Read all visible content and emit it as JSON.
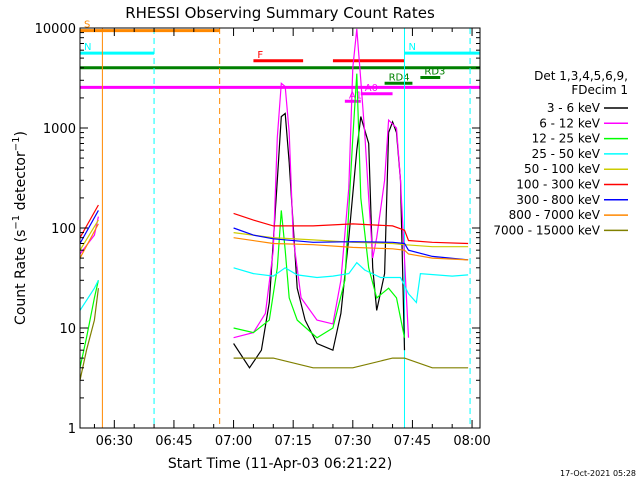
{
  "chart_data": {
    "type": "line",
    "title": "RHESSI Observing Summary Count Rates",
    "xlabel": "Start Time (11-Apr-03 06:21:22)",
    "ylabel": "Count Rate (s⁻¹ detector⁻¹)",
    "ylabel_parts": {
      "main": "Count Rate (s",
      "sup1": "−1",
      "mid": " detector",
      "sup2": "−1",
      "end": ")"
    },
    "yscale": "log",
    "xlim": [
      "06:21:22",
      "08:02:00"
    ],
    "ylim": [
      1,
      10000
    ],
    "x_ticks": [
      "06:30",
      "06:45",
      "07:00",
      "07:15",
      "07:30",
      "07:45",
      "08:00"
    ],
    "y_ticks": [
      "1",
      "10",
      "100",
      "1000",
      "10000"
    ],
    "legend_header": [
      "Det 1,3,4,5,6,9,",
      "FDecim 1"
    ],
    "footer": "17-Oct-2021 05:28",
    "series": [
      {
        "name": "3 - 6 keV",
        "color": "#000000",
        "points": [
          [
            "07:00",
            7
          ],
          [
            "07:04",
            4
          ],
          [
            "07:07",
            6
          ],
          [
            "07:09",
            18
          ],
          [
            "07:11",
            300
          ],
          [
            "07:12",
            1300
          ],
          [
            "07:13",
            1400
          ],
          [
            "07:14",
            450
          ],
          [
            "07:16",
            25
          ],
          [
            "07:18",
            12
          ],
          [
            "07:21",
            7
          ],
          [
            "07:25",
            6
          ],
          [
            "07:27",
            14
          ],
          [
            "07:29",
            80
          ],
          [
            "07:31",
            600
          ],
          [
            "07:32",
            1300
          ],
          [
            "07:34",
            700
          ],
          [
            "07:35",
            40
          ],
          [
            "07:36",
            15
          ],
          [
            "07:38",
            35
          ],
          [
            "07:39",
            900
          ],
          [
            "07:40",
            1150
          ],
          [
            "07:41",
            900
          ],
          [
            "07:42",
            300
          ],
          [
            "07:43",
            6
          ]
        ]
      },
      {
        "name": "6 - 12 keV",
        "color": "#ff00ff",
        "points": [
          [
            "06:21:22",
            55
          ],
          [
            "06:25",
            85
          ],
          [
            "06:26",
            130
          ],
          [
            "07:00",
            8
          ],
          [
            "07:05",
            9
          ],
          [
            "07:08",
            14
          ],
          [
            "07:10",
            60
          ],
          [
            "07:11",
            800
          ],
          [
            "07:12",
            2800
          ],
          [
            "07:13",
            2600
          ],
          [
            "07:14",
            900
          ],
          [
            "07:15",
            80
          ],
          [
            "07:17",
            20
          ],
          [
            "07:21",
            12
          ],
          [
            "07:25",
            11
          ],
          [
            "07:27",
            30
          ],
          [
            "07:29",
            250
          ],
          [
            "07:30",
            4000
          ],
          [
            "07:31",
            9800
          ],
          [
            "07:32",
            3000
          ],
          [
            "07:33",
            900
          ],
          [
            "07:34",
            200
          ],
          [
            "07:35",
            50
          ],
          [
            "07:36",
            80
          ],
          [
            "07:38",
            300
          ],
          [
            "07:39",
            1200
          ],
          [
            "07:41",
            1000
          ],
          [
            "07:42",
            300
          ],
          [
            "07:44",
            8
          ]
        ]
      },
      {
        "name": "12 - 25 keV",
        "color": "#00ff00",
        "points": [
          [
            "06:21:22",
            4
          ],
          [
            "06:23",
            8
          ],
          [
            "06:25",
            20
          ],
          [
            "06:26",
            30
          ],
          [
            "07:00",
            10
          ],
          [
            "07:05",
            9
          ],
          [
            "07:09",
            12
          ],
          [
            "07:11",
            40
          ],
          [
            "07:12",
            150
          ],
          [
            "07:13",
            60
          ],
          [
            "07:14",
            20
          ],
          [
            "07:16",
            12
          ],
          [
            "07:21",
            8
          ],
          [
            "07:25",
            10
          ],
          [
            "07:28",
            30
          ],
          [
            "07:30",
            800
          ],
          [
            "07:31",
            3500
          ],
          [
            "07:32",
            200
          ],
          [
            "07:34",
            40
          ],
          [
            "07:36",
            20
          ],
          [
            "07:39",
            25
          ],
          [
            "07:41",
            20
          ],
          [
            "07:43",
            8
          ]
        ]
      },
      {
        "name": "25 - 50 keV",
        "color": "#00ffff",
        "points": [
          [
            "06:21:22",
            15
          ],
          [
            "06:25",
            25
          ],
          [
            "06:26",
            30
          ],
          [
            "07:00",
            40
          ],
          [
            "07:05",
            35
          ],
          [
            "07:10",
            33
          ],
          [
            "07:13",
            40
          ],
          [
            "07:16",
            34
          ],
          [
            "07:21",
            32
          ],
          [
            "07:25",
            33
          ],
          [
            "07:29",
            35
          ],
          [
            "07:31",
            45
          ],
          [
            "07:33",
            38
          ],
          [
            "07:37",
            32
          ],
          [
            "07:42",
            32
          ],
          [
            "07:44",
            22
          ],
          [
            "07:46",
            18
          ],
          [
            "07:47",
            35
          ],
          [
            "07:55",
            33
          ],
          [
            "07:59",
            34
          ]
        ]
      },
      {
        "name": "50 - 100 keV",
        "color": "#cccc00",
        "points": [
          [
            "06:21:22",
            60
          ],
          [
            "06:26",
            120
          ],
          [
            "07:00",
            90
          ],
          [
            "07:10",
            80
          ],
          [
            "07:20",
            76
          ],
          [
            "07:30",
            72
          ],
          [
            "07:40",
            70
          ],
          [
            "07:43",
            68
          ],
          [
            "07:50",
            65
          ],
          [
            "07:59",
            65
          ]
        ]
      },
      {
        "name": "100 - 300 keV",
        "color": "#ff0000",
        "points": [
          [
            "06:21:22",
            80
          ],
          [
            "06:26",
            170
          ],
          [
            "07:00",
            140
          ],
          [
            "07:05",
            120
          ],
          [
            "07:10",
            105
          ],
          [
            "07:20",
            105
          ],
          [
            "07:30",
            110
          ],
          [
            "07:40",
            105
          ],
          [
            "07:43",
            95
          ],
          [
            "07:44",
            75
          ],
          [
            "07:50",
            72
          ],
          [
            "07:59",
            70
          ]
        ]
      },
      {
        "name": "300 - 800 keV",
        "color": "#0000ff",
        "points": [
          [
            "06:21:22",
            70
          ],
          [
            "06:26",
            150
          ],
          [
            "07:00",
            100
          ],
          [
            "07:05",
            85
          ],
          [
            "07:10",
            78
          ],
          [
            "07:20",
            72
          ],
          [
            "07:30",
            73
          ],
          [
            "07:40",
            72
          ],
          [
            "07:43",
            70
          ],
          [
            "07:44",
            60
          ],
          [
            "07:50",
            52
          ],
          [
            "07:59",
            48
          ]
        ]
      },
      {
        "name": "800 - 7000 keV",
        "color": "#ff8800",
        "points": [
          [
            "06:21:22",
            50
          ],
          [
            "06:26",
            110
          ],
          [
            "07:00",
            80
          ],
          [
            "07:10",
            70
          ],
          [
            "07:20",
            68
          ],
          [
            "07:30",
            64
          ],
          [
            "07:40",
            62
          ],
          [
            "07:43",
            60
          ],
          [
            "07:44",
            55
          ],
          [
            "07:50",
            50
          ],
          [
            "07:59",
            48
          ]
        ]
      },
      {
        "name": "7000 - 15000 keV",
        "color": "#808000",
        "points": [
          [
            "06:21:22",
            3
          ],
          [
            "06:23",
            6
          ],
          [
            "06:25",
            12
          ],
          [
            "06:26",
            25
          ],
          [
            "07:00",
            5
          ],
          [
            "07:10",
            5
          ],
          [
            "07:20",
            4
          ],
          [
            "07:30",
            4
          ],
          [
            "07:40",
            5
          ],
          [
            "07:43",
            5
          ],
          [
            "07:50",
            4
          ],
          [
            "07:59",
            4
          ]
        ]
      }
    ],
    "flags": [
      {
        "label": "S",
        "color": "#ff8800",
        "start": "06:21:22",
        "end": "06:56:30",
        "level": 9400
      },
      {
        "label": "N",
        "color": "#00ffff",
        "start": "06:21:22",
        "end": "06:40:00",
        "level": 5600
      },
      {
        "label": "",
        "color": "#008000",
        "start": "06:21:22",
        "end": "08:02:00",
        "level": 4000
      },
      {
        "label": "",
        "color": "#ff00ff",
        "start": "06:21:22",
        "end": "08:02:00",
        "level": 2550
      },
      {
        "label": "F",
        "color": "#ff0000",
        "start": "07:05:00",
        "end": "07:17:30",
        "level": 4700
      },
      {
        "label": "",
        "color": "#ff0000",
        "start": "07:25:00",
        "end": "07:43:00",
        "level": 4700
      },
      {
        "label": "N",
        "color": "#00ffff",
        "start": "07:43:00",
        "end": "08:02:00",
        "level": 5600
      },
      {
        "label": "RD3",
        "color": "#008000",
        "start": "07:47:00",
        "end": "07:52:00",
        "level": 3200
      },
      {
        "label": "RD4",
        "color": "#008000",
        "start": "07:38:00",
        "end": "07:45:00",
        "level": 2800
      },
      {
        "label": "A0",
        "color": "#ff00ff",
        "start": "07:32:00",
        "end": "07:40:00",
        "level": 2200
      },
      {
        "label": "A1",
        "color": "#ff00ff",
        "start": "07:28:00",
        "end": "07:32:00",
        "level": 1850
      }
    ],
    "vlines": [
      {
        "time": "06:21:22",
        "color": "#00ffff",
        "style": "solid"
      },
      {
        "time": "06:27:00",
        "color": "#ff8800",
        "style": "solid"
      },
      {
        "time": "06:40:00",
        "color": "#00ffff",
        "style": "dashed"
      },
      {
        "time": "06:56:30",
        "color": "#ff8800",
        "style": "dashed"
      },
      {
        "time": "07:43:00",
        "color": "#00ffff",
        "style": "solid"
      },
      {
        "time": "07:59:30",
        "color": "#00ffff",
        "style": "dashed"
      }
    ]
  }
}
